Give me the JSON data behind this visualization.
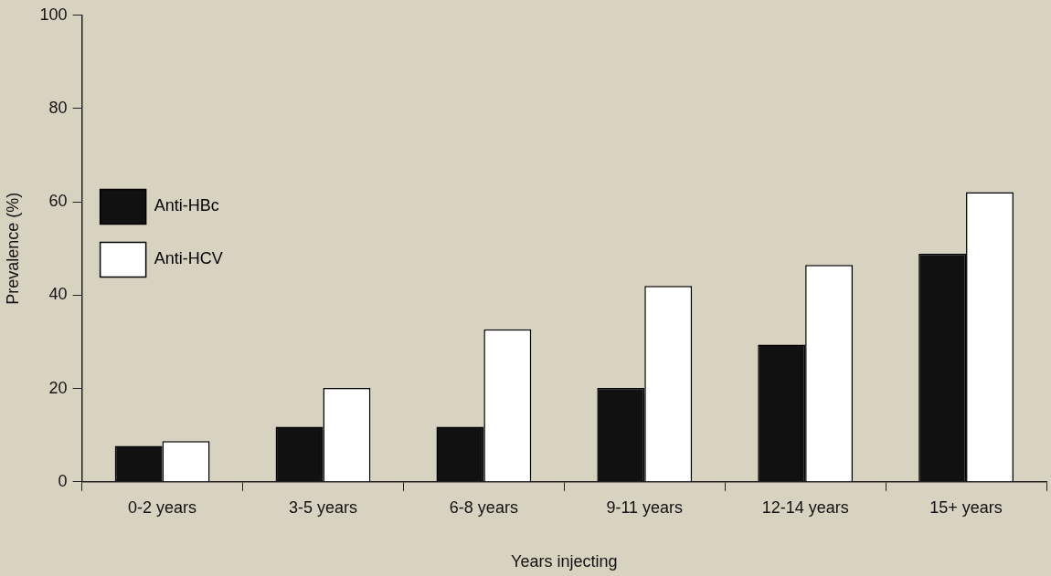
{
  "chart_data": {
    "type": "bar",
    "xlabel": "Years injecting",
    "ylabel": "Prevalence (%)",
    "categories": [
      "0-2 years",
      "3-5 years",
      "6-8 years",
      "9-11 years",
      "12-14 years",
      "15+ years"
    ],
    "series": [
      {
        "name": "Anti-HBc",
        "color": "#111111",
        "values": [
          7.7,
          11.8,
          11.8,
          20.1,
          29.4,
          48.9
        ]
      },
      {
        "name": "Anti-HCV",
        "color": "#ffffff",
        "values": [
          8.7,
          20.1,
          32.7,
          42,
          46.5,
          62.1
        ]
      }
    ],
    "ylim": [
      0,
      100
    ],
    "yticks": [
      0,
      20,
      40,
      60,
      80,
      100
    ],
    "grid": false,
    "legend": "top"
  }
}
